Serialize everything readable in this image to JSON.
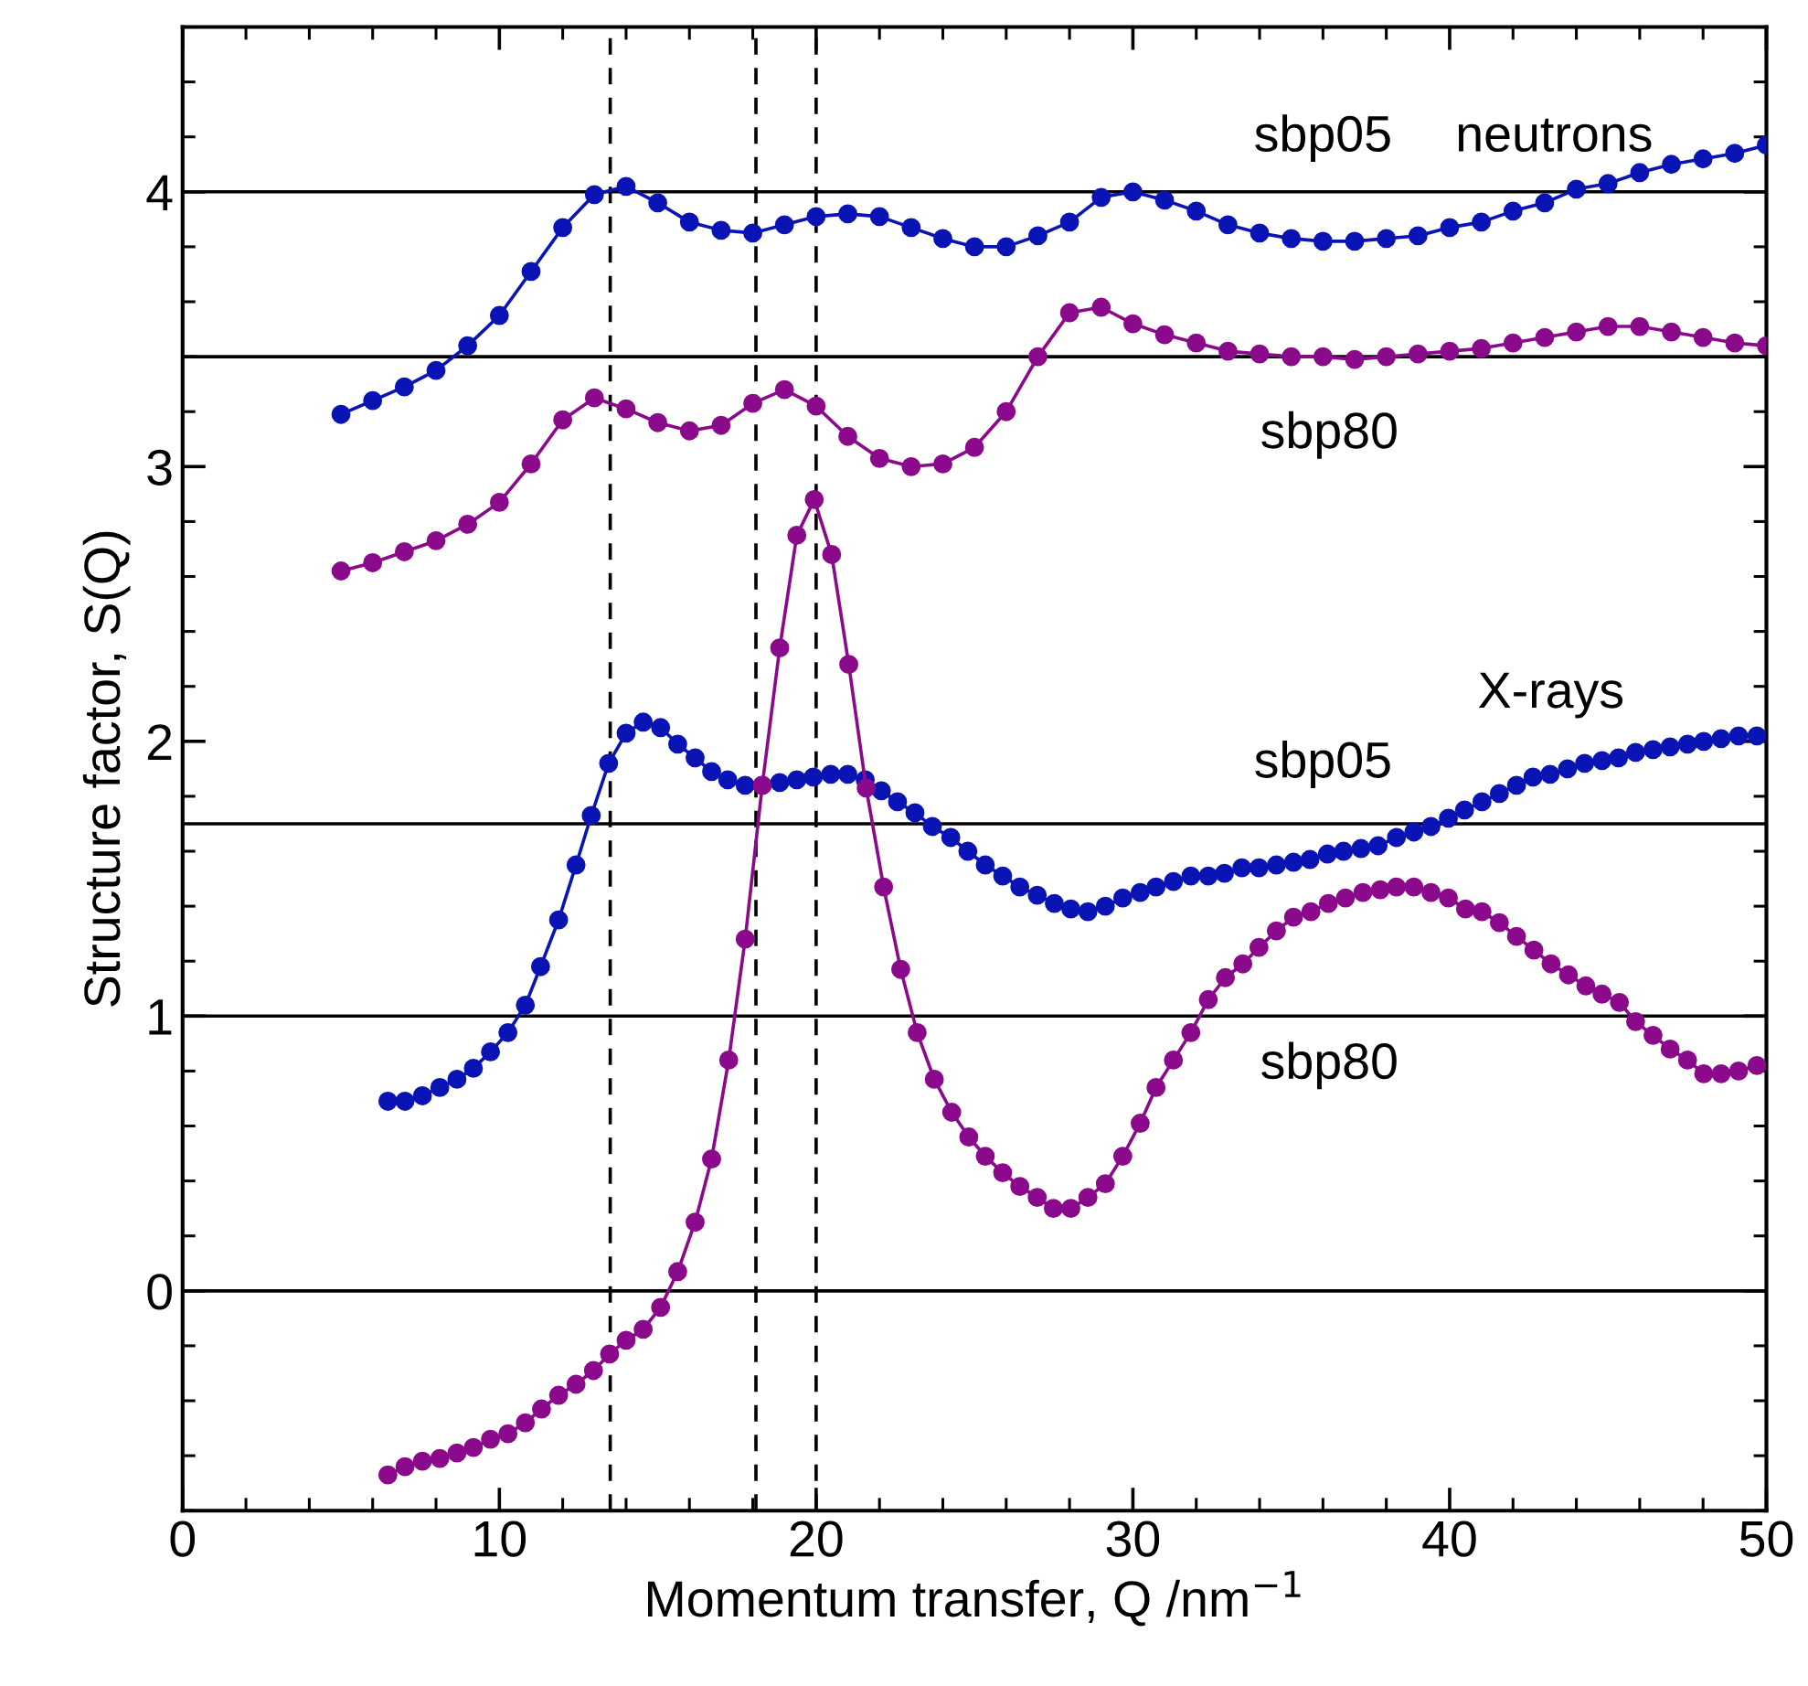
{
  "chart_data": {
    "type": "line",
    "xlabel": "Momentum transfer, Q /nm$^{−1}$",
    "ylabel": "Structure factor, S(Q)",
    "xlim": [
      0,
      50
    ],
    "ylim": [
      -0.8,
      4.6
    ],
    "xticks": [
      0,
      10,
      20,
      30,
      40,
      50
    ],
    "yticks": [
      0,
      1,
      2,
      3,
      4
    ],
    "marker": "circle",
    "line_style": "solid",
    "ref_lines": [
      {
        "axis": "y",
        "value": 4,
        "color": "#000000",
        "line_style": "solid"
      },
      {
        "axis": "y",
        "value": 3.4,
        "color": "#000000",
        "line_style": "solid"
      },
      {
        "axis": "y",
        "value": 1.7,
        "color": "#000000",
        "line_style": "solid"
      },
      {
        "axis": "y",
        "value": 1,
        "color": "#000000",
        "line_style": "solid"
      },
      {
        "axis": "y",
        "value": 0,
        "color": "#000000",
        "line_style": "solid"
      },
      {
        "axis": "x",
        "value": 13.5,
        "color": "#000000",
        "line_style": "dashed"
      },
      {
        "axis": "x",
        "value": 18.1,
        "color": "#000000",
        "line_style": "dashed"
      },
      {
        "axis": "x",
        "value": 20.0,
        "color": "#000000",
        "line_style": "dashed"
      }
    ],
    "annotations": [
      "neutrons",
      "sbp05",
      "sbp80",
      "X-rays",
      "sbp05",
      "sbp80"
    ],
    "series": [
      {
        "color": "#0a14b4",
        "x": [
          5,
          6,
          7,
          8,
          9,
          10,
          11,
          12,
          13,
          14,
          15,
          16,
          17,
          18,
          19,
          20,
          21,
          22,
          23,
          24,
          25,
          26,
          27,
          28,
          29,
          30,
          31,
          32,
          33,
          34,
          35,
          36,
          37,
          38,
          39,
          40,
          41,
          42,
          43,
          44,
          45,
          46,
          47,
          48,
          49,
          50
        ],
        "values": [
          3.19,
          3.24,
          3.29,
          3.35,
          3.44,
          3.55,
          3.71,
          3.87,
          3.99,
          4.02,
          3.96,
          3.89,
          3.86,
          3.85,
          3.88,
          3.91,
          3.92,
          3.91,
          3.87,
          3.83,
          3.8,
          3.8,
          3.84,
          3.89,
          3.98,
          4.0,
          3.97,
          3.93,
          3.88,
          3.85,
          3.83,
          3.82,
          3.82,
          3.83,
          3.84,
          3.87,
          3.89,
          3.93,
          3.96,
          4.01,
          4.03,
          4.07,
          4.1,
          4.12,
          4.14,
          4.17
        ]
      },
      {
        "color": "#8b0a8b",
        "x": [
          5,
          6,
          7,
          8,
          9,
          10,
          11,
          12,
          13,
          14,
          15,
          16,
          17,
          18,
          19,
          20,
          21,
          22,
          23,
          24,
          25,
          26,
          27,
          28,
          29,
          30,
          31,
          32,
          33,
          34,
          35,
          36,
          37,
          38,
          39,
          40,
          41,
          42,
          43,
          44,
          45,
          46,
          47,
          48,
          49,
          50
        ],
        "values": [
          2.62,
          2.65,
          2.69,
          2.73,
          2.79,
          2.87,
          3.01,
          3.17,
          3.25,
          3.21,
          3.16,
          3.13,
          3.15,
          3.23,
          3.28,
          3.22,
          3.11,
          3.03,
          3.0,
          3.01,
          3.07,
          3.2,
          3.4,
          3.56,
          3.58,
          3.52,
          3.48,
          3.45,
          3.42,
          3.41,
          3.4,
          3.4,
          3.39,
          3.4,
          3.41,
          3.42,
          3.43,
          3.45,
          3.47,
          3.49,
          3.51,
          3.51,
          3.49,
          3.47,
          3.45,
          3.44
        ]
      },
      {
        "color": "#0a14b4",
        "x": [
          6.48,
          7.02,
          7.57,
          8.12,
          8.66,
          9.18,
          9.72,
          10.27,
          10.82,
          11.3,
          11.87,
          12.42,
          12.9,
          13.45,
          14.0,
          14.54,
          15.09,
          15.63,
          16.18,
          16.7,
          17.21,
          17.76,
          18.3,
          18.85,
          19.39,
          19.91,
          20.46,
          21.0,
          21.55,
          22.06,
          22.57,
          23.12,
          23.67,
          24.25,
          24.79,
          25.34,
          25.89,
          26.43,
          26.98,
          27.52,
          28.04,
          28.58,
          29.13,
          29.68,
          30.23,
          30.73,
          31.28,
          31.83,
          32.38,
          32.89,
          33.44,
          33.98,
          34.53,
          35.07,
          35.59,
          36.14,
          36.65,
          37.2,
          37.74,
          38.32,
          38.87,
          39.41,
          39.96,
          40.47,
          41.02,
          41.57,
          42.11,
          42.63,
          43.17,
          43.72,
          44.26,
          44.81,
          45.33,
          45.87,
          46.42,
          46.96,
          47.51,
          48.02,
          48.57,
          49.12,
          49.7
        ],
        "values": [
          0.69,
          0.69,
          0.71,
          0.74,
          0.77,
          0.81,
          0.87,
          0.94,
          1.04,
          1.18,
          1.35,
          1.55,
          1.73,
          1.92,
          2.03,
          2.07,
          2.05,
          1.99,
          1.94,
          1.89,
          1.86,
          1.84,
          1.84,
          1.85,
          1.86,
          1.87,
          1.88,
          1.88,
          1.86,
          1.82,
          1.78,
          1.74,
          1.69,
          1.65,
          1.6,
          1.55,
          1.51,
          1.47,
          1.44,
          1.41,
          1.39,
          1.38,
          1.4,
          1.43,
          1.45,
          1.47,
          1.49,
          1.51,
          1.51,
          1.52,
          1.54,
          1.54,
          1.55,
          1.56,
          1.57,
          1.59,
          1.6,
          1.61,
          1.62,
          1.65,
          1.67,
          1.69,
          1.72,
          1.75,
          1.78,
          1.81,
          1.84,
          1.87,
          1.88,
          1.9,
          1.92,
          1.93,
          1.94,
          1.96,
          1.97,
          1.98,
          1.99,
          2.0,
          2.01,
          2.02,
          2.02
        ]
      },
      {
        "color": "#8b0a8b",
        "x": [
          6.48,
          7.02,
          7.57,
          8.12,
          8.66,
          9.18,
          9.72,
          10.27,
          10.82,
          11.33,
          11.87,
          12.42,
          12.97,
          13.48,
          14.0,
          14.54,
          15.09,
          15.63,
          16.18,
          16.7,
          17.24,
          17.76,
          18.3,
          18.85,
          19.39,
          19.94,
          20.49,
          21.03,
          21.58,
          22.13,
          22.67,
          23.19,
          23.73,
          24.28,
          24.82,
          25.34,
          25.89,
          26.43,
          26.98,
          27.49,
          28.04,
          28.58,
          29.13,
          29.68,
          30.23,
          30.73,
          31.28,
          31.83,
          32.38,
          32.92,
          33.47,
          33.98,
          34.53,
          35.07,
          35.62,
          36.17,
          36.71,
          37.26,
          37.81,
          38.32,
          38.87,
          39.41,
          39.96,
          40.5,
          41.02,
          41.57,
          42.11,
          42.66,
          43.2,
          43.75,
          44.3,
          44.81,
          45.36,
          45.87,
          46.42,
          46.96,
          47.51,
          48.02,
          48.57,
          49.12,
          49.7
        ],
        "values": [
          -0.67,
          -0.64,
          -0.62,
          -0.61,
          -0.59,
          -0.57,
          -0.54,
          -0.52,
          -0.48,
          -0.43,
          -0.38,
          -0.34,
          -0.29,
          -0.23,
          -0.18,
          -0.14,
          -0.06,
          0.07,
          0.25,
          0.48,
          0.84,
          1.28,
          1.84,
          2.34,
          2.75,
          2.88,
          2.68,
          2.28,
          1.83,
          1.47,
          1.17,
          0.94,
          0.77,
          0.65,
          0.56,
          0.49,
          0.43,
          0.38,
          0.34,
          0.3,
          0.3,
          0.34,
          0.39,
          0.49,
          0.61,
          0.74,
          0.84,
          0.94,
          1.06,
          1.14,
          1.19,
          1.25,
          1.31,
          1.36,
          1.38,
          1.41,
          1.43,
          1.45,
          1.46,
          1.47,
          1.47,
          1.45,
          1.43,
          1.39,
          1.38,
          1.34,
          1.29,
          1.24,
          1.19,
          1.15,
          1.11,
          1.08,
          1.05,
          0.98,
          0.93,
          0.88,
          0.84,
          0.79,
          0.79,
          0.8,
          0.82
        ]
      }
    ]
  }
}
